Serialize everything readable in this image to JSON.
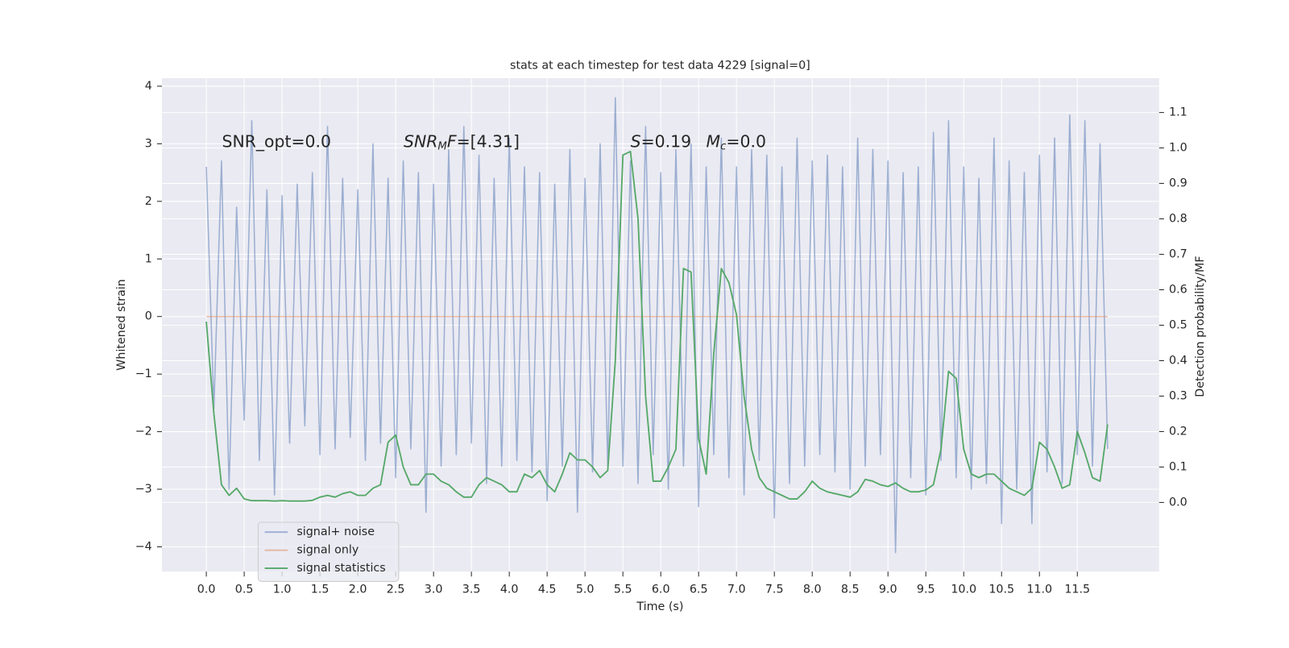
{
  "chart_data": {
    "type": "line",
    "title": "stats at each timestep for test data 4229 [signal=0]",
    "xlabel": "Time (s)",
    "ylabel": "Whitened strain",
    "y2label": "Detection probability/MF",
    "x": [
      0,
      0.1,
      0.2,
      0.3,
      0.4,
      0.5,
      0.6,
      0.7,
      0.8,
      0.9,
      1,
      1.1,
      1.2,
      1.3,
      1.4,
      1.5,
      1.6,
      1.7,
      1.8,
      1.9,
      2,
      2.1,
      2.2,
      2.3,
      2.4,
      2.5,
      2.6,
      2.7,
      2.8,
      2.9,
      3,
      3.1,
      3.2,
      3.3,
      3.4,
      3.5,
      3.6,
      3.7,
      3.8,
      3.9,
      4,
      4.1,
      4.2,
      4.3,
      4.4,
      4.5,
      4.6,
      4.7,
      4.8,
      4.9,
      5,
      5.1,
      5.2,
      5.3,
      5.4,
      5.5,
      5.6,
      5.7,
      5.8,
      5.9,
      6,
      6.1,
      6.2,
      6.3,
      6.4,
      6.5,
      6.6,
      6.7,
      6.8,
      6.9,
      7,
      7.1,
      7.2,
      7.3,
      7.4,
      7.5,
      7.6,
      7.7,
      7.8,
      7.9,
      8,
      8.1,
      8.2,
      8.3,
      8.4,
      8.5,
      8.6,
      8.7,
      8.8,
      8.9,
      9,
      9.1,
      9.2,
      9.3,
      9.4,
      9.5,
      9.6,
      9.7,
      9.8,
      9.9,
      10,
      10.1,
      10.2,
      10.3,
      10.4,
      10.5,
      10.6,
      10.7,
      10.8,
      10.9,
      11,
      11.1,
      11.2,
      11.3,
      11.4,
      11.5,
      11.6,
      11.7,
      11.8,
      11.9
    ],
    "series": [
      {
        "name": "signal+ noise",
        "color": "#4c72b0",
        "opacity": 0.5,
        "values": [
          2.6,
          -1.6,
          2.7,
          -3.0,
          1.9,
          -1.8,
          3.4,
          -2.5,
          2.2,
          -3.1,
          2.1,
          -2.2,
          2.3,
          -1.9,
          2.5,
          -2.4,
          3.3,
          -2.3,
          2.4,
          -2.1,
          2.2,
          -2.5,
          3.0,
          -2.2,
          2.4,
          -2.8,
          2.7,
          -2.3,
          2.5,
          -3.4,
          2.3,
          -2.6,
          2.9,
          -2.4,
          3.3,
          -2.2,
          2.8,
          -2.9,
          2.4,
          -2.6,
          3.1,
          -2.5,
          2.6,
          -2.7,
          2.5,
          -3.2,
          2.3,
          -2.6,
          2.9,
          -3.4,
          2.4,
          -2.7,
          3.0,
          -2.6,
          3.8,
          -2.6,
          2.7,
          -2.9,
          3.3,
          -2.4,
          2.5,
          -3.0,
          2.9,
          -2.6,
          3.0,
          -3.3,
          2.6,
          -2.4,
          3.1,
          -2.8,
          2.6,
          -3.1,
          2.9,
          -2.5,
          2.8,
          -3.5,
          2.6,
          -2.9,
          3.1,
          -2.6,
          2.7,
          -2.4,
          2.8,
          -2.7,
          2.6,
          -3.0,
          3.1,
          -2.6,
          2.9,
          -2.4,
          2.7,
          -4.1,
          2.5,
          -2.8,
          2.6,
          -3.1,
          3.2,
          -2.5,
          3.4,
          -2.8,
          2.6,
          -3.0,
          2.4,
          -2.9,
          3.1,
          -3.6,
          2.7,
          -3.0,
          2.5,
          -3.6,
          2.8,
          -2.7,
          3.1,
          -2.9,
          3.5,
          -2.4,
          3.4,
          -2.6,
          3.0,
          -2.3
        ]
      },
      {
        "name": "signal only",
        "color": "#dd8452",
        "opacity": 0.5,
        "values": [
          0,
          0,
          0,
          0,
          0,
          0,
          0,
          0,
          0,
          0,
          0,
          0,
          0,
          0,
          0,
          0,
          0,
          0,
          0,
          0,
          0,
          0,
          0,
          0,
          0,
          0,
          0,
          0,
          0,
          0,
          0,
          0,
          0,
          0,
          0,
          0,
          0,
          0,
          0,
          0,
          0,
          0,
          0,
          0,
          0,
          0,
          0,
          0,
          0,
          0,
          0,
          0,
          0,
          0,
          0,
          0,
          0,
          0,
          0,
          0,
          0,
          0,
          0,
          0,
          0,
          0,
          0,
          0,
          0,
          0,
          0,
          0,
          0,
          0,
          0,
          0,
          0,
          0,
          0,
          0,
          0,
          0,
          0,
          0,
          0,
          0,
          0,
          0,
          0,
          0,
          0,
          0,
          0,
          0,
          0,
          0,
          0,
          0,
          0,
          0,
          0,
          0,
          0,
          0,
          0,
          0,
          0,
          0,
          0,
          0,
          0,
          0,
          0,
          0,
          0,
          0,
          0,
          0,
          0,
          0
        ]
      },
      {
        "name": "signal statistics",
        "color": "#55a868",
        "opacity": 1,
        "axis": "y2",
        "values": [
          0.51,
          0.25,
          0.05,
          0.02,
          0.04,
          0.01,
          0.005,
          0.005,
          0.005,
          0.004,
          0.005,
          0.004,
          0.004,
          0.004,
          0.006,
          0.015,
          0.02,
          0.015,
          0.025,
          0.03,
          0.02,
          0.02,
          0.04,
          0.05,
          0.17,
          0.19,
          0.1,
          0.05,
          0.05,
          0.08,
          0.08,
          0.06,
          0.05,
          0.03,
          0.015,
          0.015,
          0.05,
          0.07,
          0.06,
          0.05,
          0.03,
          0.03,
          0.08,
          0.07,
          0.09,
          0.05,
          0.03,
          0.08,
          0.14,
          0.12,
          0.12,
          0.1,
          0.07,
          0.09,
          0.4,
          0.98,
          0.99,
          0.8,
          0.3,
          0.06,
          0.06,
          0.1,
          0.15,
          0.66,
          0.65,
          0.18,
          0.08,
          0.42,
          0.66,
          0.62,
          0.53,
          0.3,
          0.15,
          0.07,
          0.04,
          0.03,
          0.02,
          0.01,
          0.01,
          0.03,
          0.06,
          0.04,
          0.03,
          0.025,
          0.02,
          0.015,
          0.03,
          0.065,
          0.06,
          0.05,
          0.045,
          0.055,
          0.04,
          0.03,
          0.03,
          0.035,
          0.05,
          0.15,
          0.37,
          0.35,
          0.15,
          0.08,
          0.07,
          0.08,
          0.08,
          0.06,
          0.04,
          0.03,
          0.02,
          0.04,
          0.17,
          0.15,
          0.1,
          0.04,
          0.05,
          0.2,
          0.14,
          0.07,
          0.06,
          0.22
        ]
      }
    ],
    "xlim": [
      -0.586,
      12.58
    ],
    "xticks": [
      {
        "value": 0,
        "label": "0.0"
      },
      {
        "value": 0.5,
        "label": "0.5"
      },
      {
        "value": 1,
        "label": "1.0"
      },
      {
        "value": 1.5,
        "label": "1.5"
      },
      {
        "value": 2,
        "label": "2.0"
      },
      {
        "value": 2.5,
        "label": "2.5"
      },
      {
        "value": 3,
        "label": "3.0"
      },
      {
        "value": 3.5,
        "label": "3.5"
      },
      {
        "value": 4,
        "label": "4.0"
      },
      {
        "value": 4.5,
        "label": "4.5"
      },
      {
        "value": 5,
        "label": "5.0"
      },
      {
        "value": 5.5,
        "label": "5.5"
      },
      {
        "value": 6,
        "label": "6.0"
      },
      {
        "value": 6.5,
        "label": "6.5"
      },
      {
        "value": 7,
        "label": "7.0"
      },
      {
        "value": 7.5,
        "label": "7.5"
      },
      {
        "value": 8,
        "label": "8.0"
      },
      {
        "value": 8.5,
        "label": "8.5"
      },
      {
        "value": 9,
        "label": "9.0"
      },
      {
        "value": 9.5,
        "label": "9.5"
      },
      {
        "value": 10,
        "label": "10.0"
      },
      {
        "value": 10.5,
        "label": "10.5"
      },
      {
        "value": 11,
        "label": "11.0"
      },
      {
        "value": 11.5,
        "label": "11.5"
      }
    ],
    "ylim": [
      -4.43,
      4.14
    ],
    "yticks": [
      {
        "value": -4,
        "label": "−4"
      },
      {
        "value": -3,
        "label": "−3"
      },
      {
        "value": -2,
        "label": "−2"
      },
      {
        "value": -1,
        "label": "−1"
      },
      0,
      1,
      2,
      3,
      4
    ],
    "y2lim": [
      -0.195,
      1.197
    ],
    "y2ticks": [
      {
        "value": 0,
        "label": "0.0"
      },
      0.1,
      0.2,
      0.3,
      0.4,
      0.5,
      0.6,
      0.7,
      0.8,
      0.9,
      {
        "value": 1,
        "label": "1.0"
      },
      1.1
    ],
    "grid": true,
    "legend": "lower left",
    "annotations": [
      [
        {
          "t": "SNR_opt=0.0"
        }
      ],
      [
        {
          "t": "SNR",
          "i": true
        },
        {
          "t": "M",
          "i": true,
          "sub": true
        },
        {
          "t": "F",
          "i": true
        },
        {
          "t": "=[4.31]"
        }
      ],
      [
        {
          "t": "S",
          "i": true
        },
        {
          "t": "=0.19"
        }
      ],
      [
        {
          "t": "M",
          "i": true
        },
        {
          "t": "c",
          "i": true,
          "sub": true
        },
        {
          "t": "=0.0"
        }
      ]
    ]
  }
}
